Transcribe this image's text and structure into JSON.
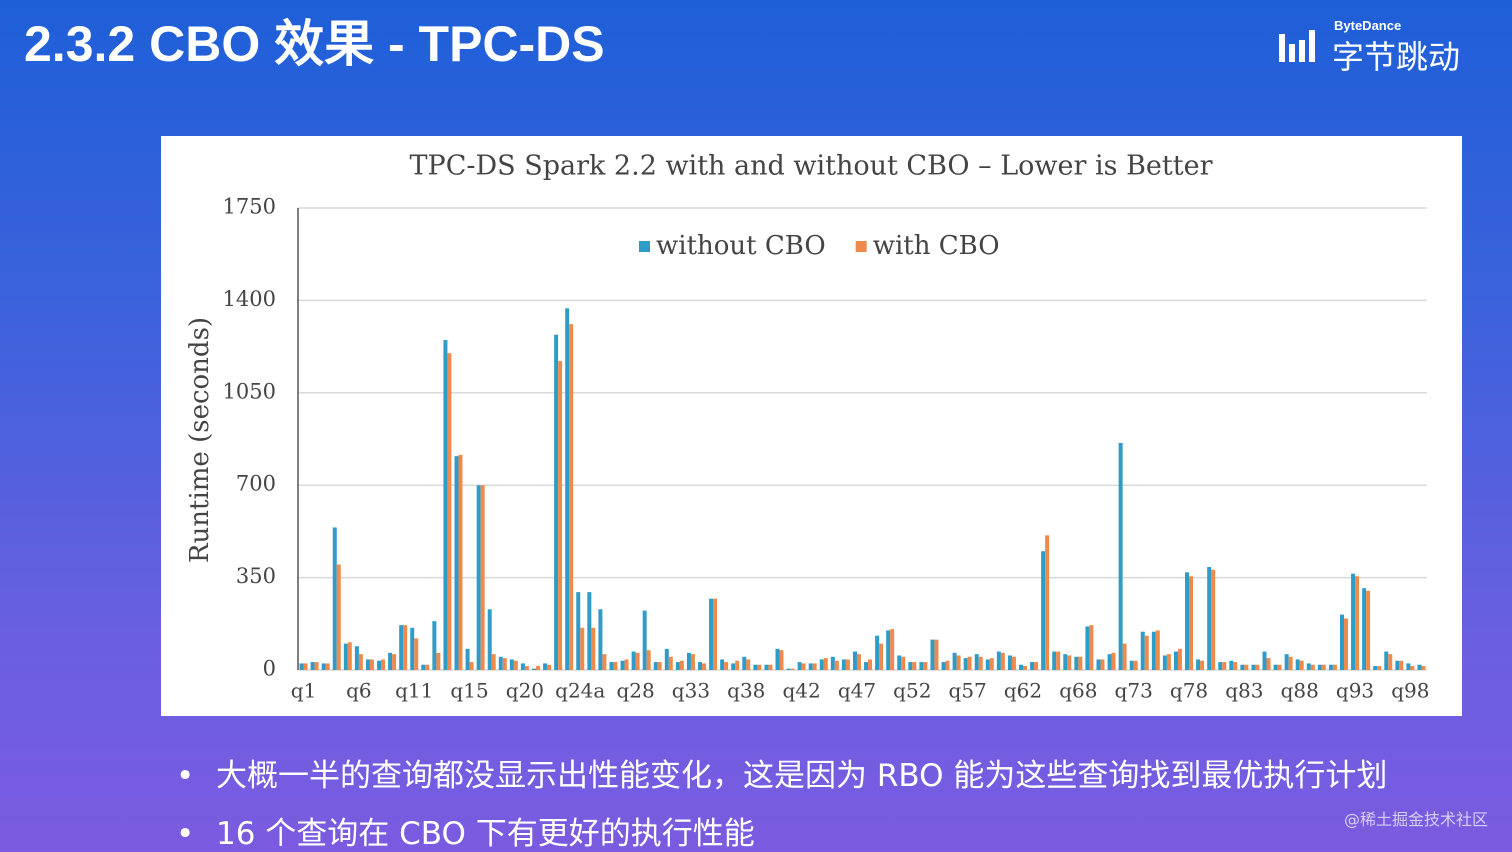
{
  "title": "2.3.2 CBO 效果 - TPC-DS",
  "logo": {
    "brand": "ByteDance",
    "name": "字节跳动"
  },
  "bullets": [
    "大概一半的查询都没显示出性能变化，这是因为 RBO 能为这些查询找到最优执行计划",
    "16 个查询在 CBO 下有更好的执行性能"
  ],
  "watermark": "@稀土掘金技术社区",
  "chart_data": {
    "type": "bar",
    "title": "TPC-DS Spark 2.2 with and without CBO – Lower is Better",
    "y_label": "Runtime (seconds)",
    "categories": [
      "q1",
      null,
      null,
      null,
      null,
      "q6",
      null,
      null,
      null,
      null,
      "q11",
      null,
      null,
      null,
      null,
      "q15",
      null,
      null,
      null,
      null,
      "q20",
      null,
      null,
      null,
      null,
      "q24a",
      null,
      null,
      null,
      null,
      "q28",
      null,
      null,
      null,
      null,
      "q33",
      null,
      null,
      null,
      null,
      "q38",
      null,
      null,
      null,
      null,
      "q42",
      null,
      null,
      null,
      null,
      "q47",
      null,
      null,
      null,
      null,
      "q52",
      null,
      null,
      null,
      null,
      "q57",
      null,
      null,
      null,
      null,
      "q62",
      null,
      null,
      null,
      null,
      "q68",
      null,
      null,
      null,
      null,
      "q73",
      null,
      null,
      null,
      null,
      "q78",
      null,
      null,
      null,
      null,
      "q83",
      null,
      null,
      null,
      null,
      "q88",
      null,
      null,
      null,
      null,
      "q93",
      null,
      null,
      null,
      null,
      "q98",
      null
    ],
    "series": [
      {
        "name": "without CBO",
        "color": "#2e9cc8",
        "values": [
          25,
          30,
          25,
          540,
          100,
          90,
          40,
          35,
          65,
          170,
          160,
          20,
          185,
          1250,
          810,
          80,
          700,
          230,
          50,
          40,
          25,
          5,
          25,
          1270,
          1370,
          295,
          295,
          230,
          30,
          35,
          70,
          225,
          30,
          80,
          30,
          65,
          30,
          270,
          40,
          25,
          50,
          20,
          20,
          80,
          5,
          30,
          25,
          40,
          50,
          40,
          70,
          30,
          130,
          150,
          55,
          30,
          30,
          115,
          30,
          65,
          45,
          60,
          40,
          70,
          55,
          20,
          30,
          450,
          70,
          60,
          50,
          165,
          40,
          60,
          860,
          35,
          145,
          145,
          55,
          70,
          370,
          40,
          390,
          30,
          35,
          20,
          20,
          70,
          20,
          60,
          40,
          25,
          20,
          20,
          210,
          365,
          310,
          15,
          70,
          35,
          25,
          20
        ]
      },
      {
        "name": "with CBO",
        "color": "#ee8a4c",
        "values": [
          25,
          30,
          25,
          400,
          105,
          60,
          40,
          40,
          60,
          170,
          120,
          20,
          65,
          1200,
          815,
          30,
          700,
          60,
          45,
          35,
          15,
          15,
          20,
          1170,
          1310,
          160,
          160,
          60,
          30,
          40,
          65,
          75,
          30,
          50,
          35,
          60,
          25,
          270,
          30,
          35,
          40,
          20,
          20,
          75,
          5,
          25,
          25,
          45,
          35,
          40,
          60,
          40,
          100,
          155,
          50,
          30,
          30,
          115,
          35,
          55,
          50,
          50,
          45,
          65,
          50,
          15,
          30,
          510,
          70,
          55,
          50,
          170,
          40,
          65,
          100,
          35,
          130,
          150,
          60,
          80,
          355,
          35,
          380,
          30,
          30,
          20,
          20,
          45,
          20,
          50,
          35,
          20,
          20,
          20,
          195,
          355,
          300,
          15,
          60,
          35,
          15,
          15
        ]
      }
    ],
    "ylim": [
      0,
      1750
    ],
    "yticks": [
      0,
      350,
      700,
      1050,
      1400,
      1750
    ],
    "grid": true,
    "legend": "top"
  }
}
